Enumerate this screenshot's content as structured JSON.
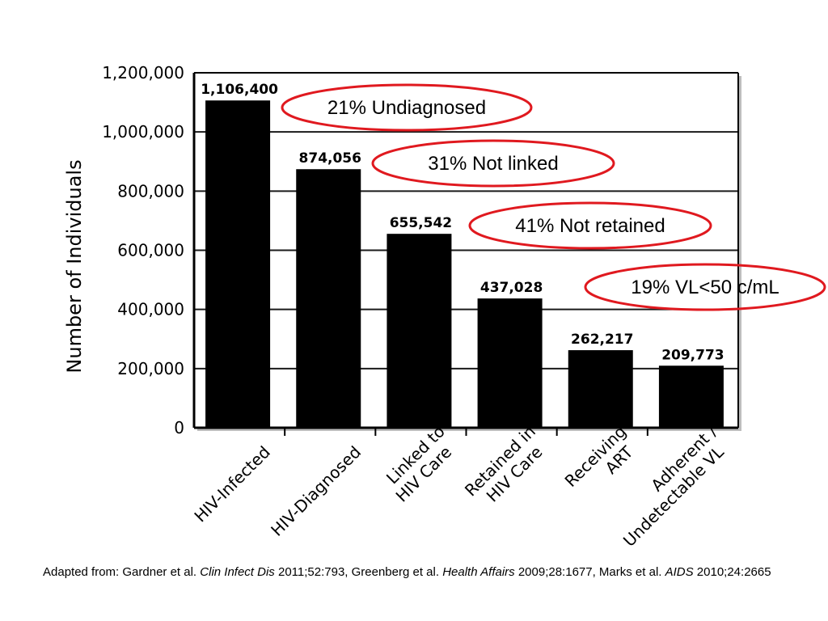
{
  "chart_data": {
    "type": "bar",
    "title": "",
    "xlabel": "",
    "ylabel": "Number of Individuals",
    "ylim": [
      0,
      1200000
    ],
    "yticks": [
      "0",
      "200,000",
      "400,000",
      "600,000",
      "800,000",
      "1,000,000",
      "1,200,000"
    ],
    "ytick_values": [
      0,
      200000,
      400000,
      600000,
      800000,
      1000000,
      1200000
    ],
    "grid": true,
    "categories": [
      [
        "HIV-Infected"
      ],
      [
        "HIV-Diagnosed"
      ],
      [
        "Linked to",
        "HIV Care"
      ],
      [
        "Retained in",
        "HIV Care"
      ],
      [
        "Receiving",
        "ART"
      ],
      [
        "Adherent /",
        "Undetectable VL"
      ]
    ],
    "values": [
      1106400,
      874056,
      655542,
      437028,
      262217,
      209773
    ],
    "value_labels": [
      "1,106,400",
      "874,056",
      "655,542",
      "437,028",
      "262,217",
      "209,773"
    ],
    "bar_color": "#000000",
    "annotations": [
      "21% Undiagnosed",
      "31% Not linked",
      "41% Not retained",
      "19% VL<50 c/mL"
    ],
    "annotation_color": "#e0191f"
  },
  "citation": {
    "prefix": "Adapted from: Gardner et al. ",
    "journal1": "Clin Infect Dis",
    "ref1": " 2011;52:793, Greenberg et al. ",
    "journal2": "Health Affairs",
    "ref2": " 2009;28:1677, Marks et al. ",
    "journal3": "AIDS",
    "ref3": " 2010;24:2665"
  }
}
